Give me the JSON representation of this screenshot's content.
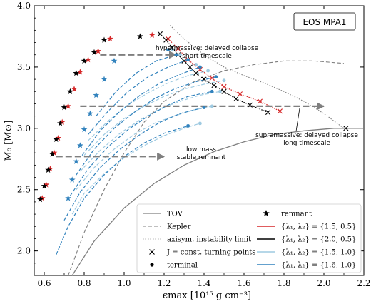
{
  "chart_data": {
    "type": "line",
    "xlabel": "ϵmax [10¹⁵ g cm⁻³]",
    "ylabel": "M₀ [M⊙]",
    "xlim": [
      0.55,
      2.2
    ],
    "ylim": [
      1.8,
      4.0
    ],
    "xticks": [
      0.6,
      0.8,
      1.0,
      1.2,
      1.4,
      1.6,
      1.8,
      2.0,
      2.2
    ],
    "yticks": [
      2.0,
      2.5,
      3.0,
      3.5,
      4.0
    ],
    "eos_label": "EOS MPA1",
    "colors": {
      "tov": "#7f7f7f",
      "kepler": "#7f7f7f",
      "instability": "#7f7f7f",
      "red": "#d62728",
      "black": "#000000",
      "light_blue": "#9ecae1",
      "mid_blue": "#3182bd",
      "arrow": "#7f7f7f"
    },
    "tov": {
      "name": "TOV",
      "x": [
        0.74,
        0.85,
        1.0,
        1.15,
        1.3,
        1.45,
        1.6,
        1.75,
        1.9,
        2.05,
        2.2
      ],
      "y": [
        1.8,
        2.08,
        2.35,
        2.55,
        2.7,
        2.81,
        2.89,
        2.95,
        2.98,
        3.0,
        3.0
      ]
    },
    "kepler": {
      "name": "Kepler",
      "x": [
        0.72,
        0.8,
        0.9,
        1.0,
        1.1,
        1.2,
        1.35,
        1.5,
        1.65,
        1.8,
        1.95,
        2.1
      ],
      "y": [
        1.8,
        2.15,
        2.5,
        2.8,
        3.05,
        3.22,
        3.38,
        3.47,
        3.52,
        3.55,
        3.55,
        3.53
      ]
    },
    "instability": {
      "name": "axisym. instability limit",
      "x": [
        1.23,
        1.3,
        1.4,
        1.5,
        1.6,
        1.7,
        1.8,
        1.9,
        2.0,
        2.1
      ],
      "y": [
        3.84,
        3.73,
        3.6,
        3.5,
        3.43,
        3.37,
        3.3,
        3.22,
        3.12,
        3.0
      ]
    },
    "turning_points": {
      "name": "J = const. turning points",
      "x": [
        1.18,
        1.21,
        1.24,
        1.27,
        1.3,
        1.33,
        1.36,
        1.4,
        1.45,
        1.5,
        1.56,
        1.63,
        1.72,
        2.11
      ],
      "y": [
        3.77,
        3.72,
        3.66,
        3.6,
        3.55,
        3.5,
        3.45,
        3.4,
        3.35,
        3.3,
        3.24,
        3.19,
        3.13,
        3.0
      ]
    },
    "turning_points_red": {
      "x": [
        1.22,
        1.27,
        1.32,
        1.38,
        1.44,
        1.5,
        1.58,
        1.68,
        1.78
      ],
      "y": [
        3.73,
        3.65,
        3.56,
        3.48,
        3.41,
        3.34,
        3.28,
        3.22,
        3.14
      ]
    },
    "sequences": {
      "light_blue": [
        {
          "x": [
            0.74,
            0.8,
            0.9,
            1.0,
            1.1,
            1.2,
            1.3,
            1.38
          ],
          "y": [
            2.3,
            2.47,
            2.63,
            2.76,
            2.86,
            2.94,
            3.0,
            3.04
          ]
        },
        {
          "x": [
            0.76,
            0.85,
            0.95,
            1.05,
            1.15,
            1.25,
            1.35,
            1.44
          ],
          "y": [
            2.5,
            2.68,
            2.83,
            2.95,
            3.04,
            3.1,
            3.15,
            3.18
          ]
        },
        {
          "x": [
            0.78,
            0.88,
            0.98,
            1.08,
            1.18,
            1.28,
            1.38,
            1.48
          ],
          "y": [
            2.65,
            2.82,
            2.96,
            3.07,
            3.16,
            3.22,
            3.27,
            3.3
          ]
        },
        {
          "x": [
            0.8,
            0.9,
            1.0,
            1.1,
            1.2,
            1.3,
            1.4,
            1.5
          ],
          "y": [
            2.78,
            2.95,
            3.08,
            3.18,
            3.26,
            3.32,
            3.36,
            3.39
          ]
        },
        {
          "x": [
            0.82,
            0.92,
            1.02,
            1.12,
            1.22,
            1.32,
            1.42
          ],
          "y": [
            2.9,
            3.06,
            3.19,
            3.29,
            3.37,
            3.43,
            3.47
          ]
        }
      ],
      "mid_blue": [
        {
          "x": [
            0.66,
            0.72,
            0.8,
            0.9,
            1.0,
            1.1,
            1.2,
            1.32
          ],
          "y": [
            1.97,
            2.2,
            2.43,
            2.62,
            2.77,
            2.88,
            2.96,
            3.02
          ]
        },
        {
          "x": [
            0.7,
            0.78,
            0.88,
            0.98,
            1.08,
            1.18,
            1.28,
            1.4
          ],
          "y": [
            2.25,
            2.48,
            2.68,
            2.83,
            2.95,
            3.05,
            3.12,
            3.17
          ]
        },
        {
          "x": [
            0.73,
            0.82,
            0.92,
            1.02,
            1.12,
            1.22,
            1.32,
            1.44
          ],
          "y": [
            2.45,
            2.67,
            2.85,
            2.99,
            3.1,
            3.19,
            3.26,
            3.3
          ]
        },
        {
          "x": [
            0.76,
            0.85,
            0.95,
            1.05,
            1.15,
            1.25,
            1.36,
            1.46
          ],
          "y": [
            2.62,
            2.83,
            3.0,
            3.13,
            3.24,
            3.32,
            3.38,
            3.42
          ]
        },
        {
          "x": [
            0.79,
            0.88,
            0.98,
            1.08,
            1.18,
            1.28,
            1.38
          ],
          "y": [
            2.78,
            2.98,
            3.14,
            3.27,
            3.37,
            3.44,
            3.5
          ]
        },
        {
          "x": [
            0.82,
            0.92,
            1.02,
            1.12,
            1.22,
            1.32
          ],
          "y": [
            2.95,
            3.14,
            3.3,
            3.42,
            3.5,
            3.56
          ]
        },
        {
          "x": [
            0.86,
            0.96,
            1.06,
            1.16,
            1.26
          ],
          "y": [
            3.1,
            3.3,
            3.45,
            3.55,
            3.6
          ]
        }
      ]
    },
    "terminal_light": {
      "x": [
        1.38,
        1.44,
        1.48,
        1.5,
        1.42,
        1.36,
        1.32,
        1.28,
        1.24
      ],
      "y": [
        3.04,
        3.18,
        3.3,
        3.39,
        3.47,
        3.52,
        3.56,
        3.6,
        3.64
      ]
    },
    "terminal_mid": {
      "x": [
        1.32,
        1.4,
        1.44,
        1.46,
        1.38,
        1.32,
        1.26,
        1.22
      ],
      "y": [
        3.02,
        3.17,
        3.3,
        3.42,
        3.5,
        3.56,
        3.6,
        3.64
      ]
    },
    "remnants_black": {
      "name": "remnant",
      "x": [
        0.58,
        0.6,
        0.62,
        0.64,
        0.66,
        0.68,
        0.7,
        0.73,
        0.76,
        0.8,
        0.85,
        0.9,
        1.08
      ],
      "y": [
        2.42,
        2.53,
        2.66,
        2.79,
        2.91,
        3.04,
        3.17,
        3.3,
        3.45,
        3.55,
        3.62,
        3.72,
        3.75
      ]
    },
    "remnants_red": {
      "x": [
        0.59,
        0.61,
        0.63,
        0.65,
        0.67,
        0.69,
        0.72,
        0.75,
        0.78,
        0.82,
        0.87,
        0.93,
        1.14
      ],
      "y": [
        2.43,
        2.54,
        2.67,
        2.8,
        2.92,
        3.05,
        3.18,
        3.32,
        3.46,
        3.56,
        3.63,
        3.73,
        3.76
      ]
    },
    "remnants_blue": {
      "x": [
        0.72,
        0.74,
        0.76,
        0.78,
        0.8,
        0.83,
        0.86,
        0.9,
        0.95
      ],
      "y": [
        2.43,
        2.58,
        2.73,
        2.86,
        2.99,
        3.12,
        3.27,
        3.4,
        3.55
      ]
    },
    "arrows": [
      {
        "x1": 0.88,
        "y1": 3.6,
        "x2": 1.26,
        "y2": 3.6
      },
      {
        "x1": 0.78,
        "y1": 3.18,
        "x2": 2.0,
        "y2": 3.18
      },
      {
        "x1": 0.66,
        "y1": 2.77,
        "x2": 1.2,
        "y2": 2.77
      }
    ],
    "annotations": [
      {
        "lines": [
          "hypermassive: delayed collapse",
          "short timescale"
        ]
      },
      {
        "lines": [
          "low mass",
          "stable remnant"
        ]
      },
      {
        "lines": [
          "supramassive: delayed collapse",
          "long timescale"
        ]
      }
    ],
    "legend": {
      "placement": "lower-right",
      "left": [
        {
          "label": "TOV",
          "style": "line"
        },
        {
          "label": "Kepler",
          "style": "dashed"
        },
        {
          "label": "axisym. instability limit",
          "style": "dotted"
        },
        {
          "label": "J = const. turning points",
          "style": "cross"
        },
        {
          "label": "terminal",
          "style": "dot"
        }
      ],
      "right": [
        {
          "label": "remnant",
          "style": "star"
        },
        {
          "label": "{λ₁, λ₂} = {1.5, 0.5}",
          "style": "red"
        },
        {
          "label": "{λ₁, λ₂} = {2.0, 0.5}",
          "style": "black"
        },
        {
          "label": "{λ₁, λ₂} = {1.5, 1.0}",
          "style": "light_blue"
        },
        {
          "label": "{λ₁, λ₂} = {1.6, 1.0}",
          "style": "mid_blue"
        }
      ]
    }
  }
}
